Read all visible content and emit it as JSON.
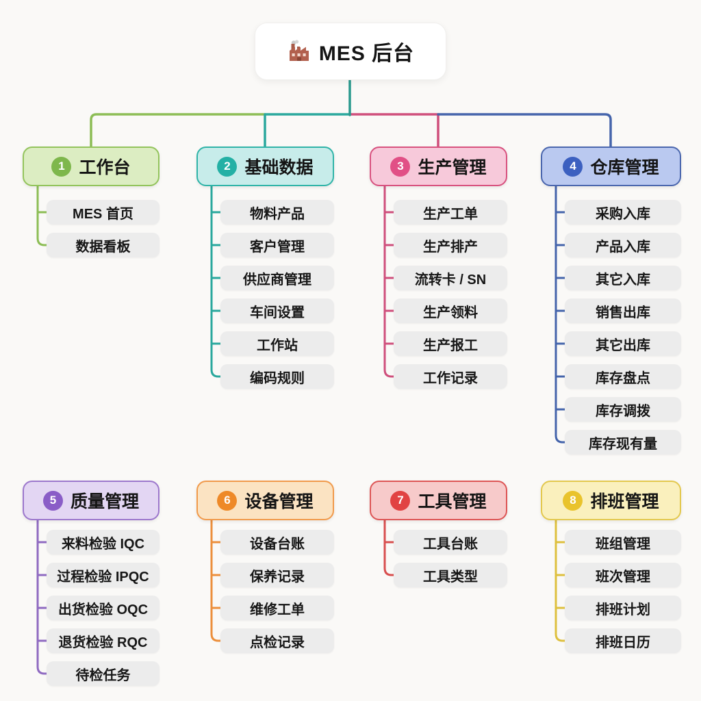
{
  "root": {
    "icon": "factory-icon",
    "title": "MES 后台"
  },
  "connectors": {
    "stem_color": "#2a9a8e"
  },
  "branches": [
    {
      "number": "1",
      "title": "工作台",
      "colors": {
        "fill": "#dcedc2",
        "border": "#93c45c",
        "line": "#8cbd55",
        "badge": "#7eb74c"
      },
      "items": [
        "MES 首页",
        "数据看板"
      ]
    },
    {
      "number": "2",
      "title": "基础数据",
      "colors": {
        "fill": "#c7ecea",
        "border": "#30b4a8",
        "line": "#2aa89d",
        "badge": "#24b0a5"
      },
      "items": [
        "物料产品",
        "客户管理",
        "供应商管理",
        "车间设置",
        "工作站",
        "编码规则"
      ]
    },
    {
      "number": "3",
      "title": "生产管理",
      "colors": {
        "fill": "#f7c9da",
        "border": "#d8527f",
        "line": "#cf4f7c",
        "badge": "#e15086"
      },
      "items": [
        "生产工单",
        "生产排产",
        "流转卡 / SN",
        "生产领料",
        "生产报工",
        "工作记录"
      ]
    },
    {
      "number": "4",
      "title": "仓库管理",
      "colors": {
        "fill": "#bac9f0",
        "border": "#4b67ae",
        "line": "#4464ab",
        "badge": "#3c60c0"
      },
      "items": [
        "采购入库",
        "产品入库",
        "其它入库",
        "销售出库",
        "其它出库",
        "库存盘点",
        "库存调拨",
        "库存现有量"
      ]
    },
    {
      "number": "5",
      "title": "质量管理",
      "colors": {
        "fill": "#e3d6f3",
        "border": "#9c77cc",
        "line": "#8f6ac1",
        "badge": "#8a5dc7"
      },
      "items": [
        "来料检验 IQC",
        "过程检验 IPQC",
        "出货检验 OQC",
        "退货检验 RQC",
        "待检任务"
      ]
    },
    {
      "number": "6",
      "title": "设备管理",
      "colors": {
        "fill": "#fbe3c2",
        "border": "#f19a4b",
        "line": "#ec8f3c",
        "badge": "#ee8928"
      },
      "items": [
        "设备台账",
        "保养记录",
        "维修工单",
        "点检记录"
      ]
    },
    {
      "number": "7",
      "title": "工具管理",
      "colors": {
        "fill": "#f7caca",
        "border": "#dd5555",
        "line": "#d84f4f",
        "badge": "#e14343"
      },
      "items": [
        "工具台账",
        "工具类型"
      ]
    },
    {
      "number": "8",
      "title": "排班管理",
      "colors": {
        "fill": "#faf0bd",
        "border": "#e3c84e",
        "line": "#dec03e",
        "badge": "#e9c32c"
      },
      "items": [
        "班组管理",
        "班次管理",
        "排班计划",
        "排班日历"
      ]
    }
  ]
}
